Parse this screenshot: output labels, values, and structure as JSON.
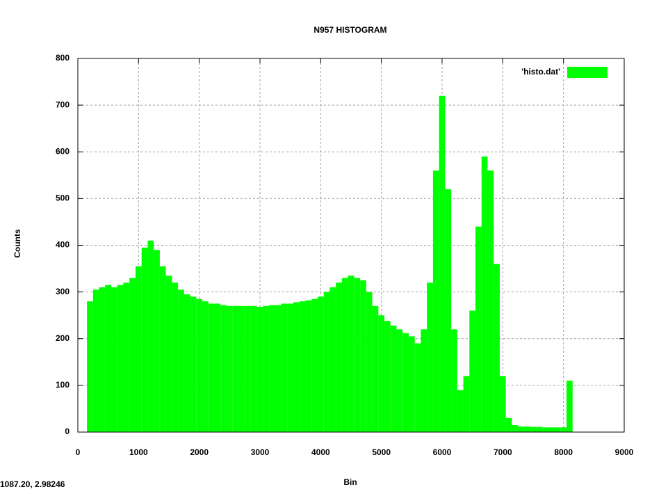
{
  "chart_data": {
    "type": "histogram",
    "title": "N957 HISTOGRAM",
    "x_label": "Bin",
    "y_label": "Counts",
    "series": [
      {
        "name": "'histo.dat'",
        "color": "#00ff00",
        "bins": [
          150,
          250,
          350,
          450,
          550,
          650,
          750,
          850,
          950,
          1050,
          1150,
          1250,
          1350,
          1450,
          1550,
          1650,
          1750,
          1850,
          1950,
          2050,
          2150,
          2250,
          2350,
          2450,
          2550,
          2650,
          2750,
          2850,
          2950,
          3050,
          3150,
          3250,
          3350,
          3450,
          3550,
          3650,
          3750,
          3850,
          3950,
          4050,
          4150,
          4250,
          4350,
          4450,
          4550,
          4650,
          4750,
          4850,
          4950,
          5050,
          5150,
          5250,
          5350,
          5450,
          5550,
          5650,
          5750,
          5850,
          5950,
          6050,
          6150,
          6250,
          6350,
          6450,
          6550,
          6650,
          6750,
          6850,
          6950,
          7050,
          7150,
          7250,
          7350,
          7450,
          7550,
          7650,
          7750,
          7850,
          7950,
          8050,
          8150
        ],
        "values": [
          280,
          305,
          310,
          315,
          310,
          315,
          320,
          330,
          355,
          395,
          410,
          390,
          355,
          335,
          320,
          305,
          295,
          290,
          285,
          280,
          275,
          275,
          272,
          270,
          270,
          270,
          270,
          270,
          268,
          270,
          272,
          272,
          275,
          275,
          278,
          280,
          282,
          285,
          290,
          300,
          310,
          320,
          330,
          335,
          330,
          325,
          300,
          270,
          250,
          238,
          228,
          220,
          212,
          205,
          190,
          220,
          320,
          560,
          720,
          520,
          220,
          90,
          120,
          260,
          440,
          590,
          560,
          360,
          120,
          30,
          15,
          12,
          12,
          11,
          11,
          10,
          10,
          10,
          10,
          110
        ]
      }
    ],
    "xlim": [
      0,
      9000
    ],
    "xticks": [
      0,
      1000,
      2000,
      3000,
      4000,
      5000,
      6000,
      7000,
      8000,
      9000
    ],
    "ylim": [
      0,
      800
    ],
    "yticks": [
      0,
      100,
      200,
      300,
      400,
      500,
      600,
      700,
      800
    ],
    "grid": true,
    "legend": "upper right"
  },
  "status_bar": "1087.20, 2.98246"
}
